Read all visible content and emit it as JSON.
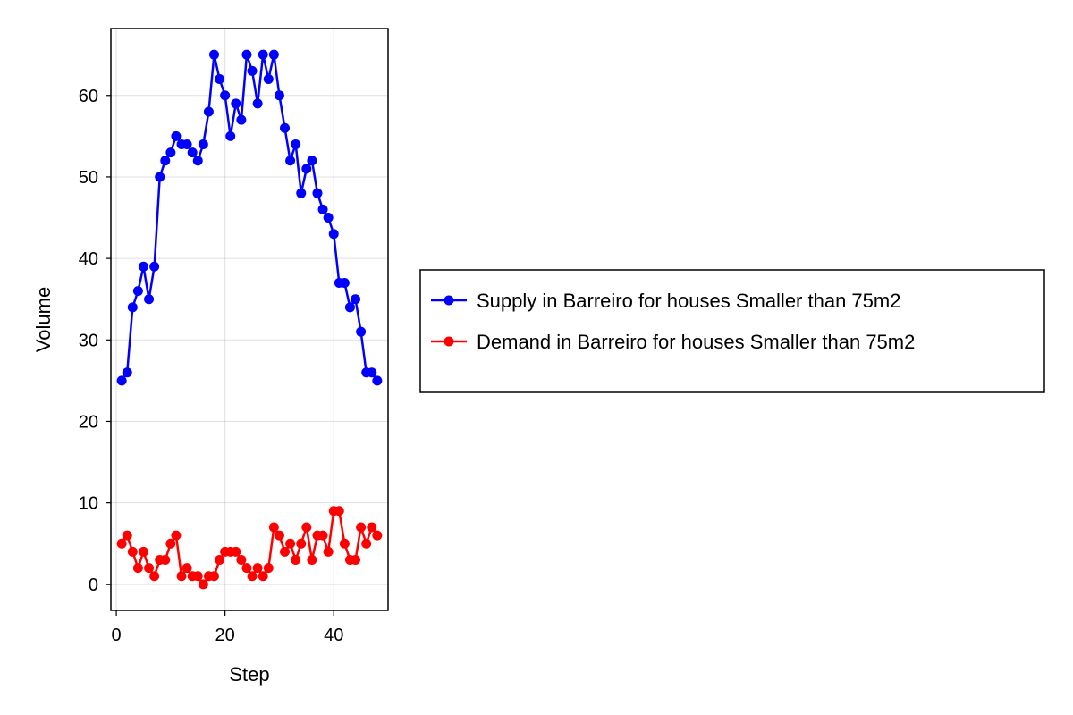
{
  "chart_data": {
    "type": "line",
    "xlabel": "Step",
    "ylabel": "Volume",
    "xlim": [
      -1,
      50
    ],
    "ylim": [
      -3.2,
      68.2
    ],
    "xticks": [
      0,
      20,
      40
    ],
    "yticks": [
      0,
      10,
      20,
      30,
      40,
      50,
      60
    ],
    "grid": true,
    "legend_placement": "right",
    "x": [
      1,
      2,
      3,
      4,
      5,
      6,
      7,
      8,
      9,
      10,
      11,
      12,
      13,
      14,
      15,
      16,
      17,
      18,
      19,
      20,
      21,
      22,
      23,
      24,
      25,
      26,
      27,
      28,
      29,
      30,
      31,
      32,
      33,
      34,
      35,
      36,
      37,
      38,
      39,
      40,
      41,
      42,
      43,
      44,
      45,
      46,
      47,
      48
    ],
    "series": [
      {
        "name": "Supply in Barreiro for houses Smaller than 75m2",
        "color": "#0000ff",
        "values": [
          25,
          26,
          34,
          36,
          39,
          35,
          39,
          50,
          52,
          53,
          55,
          54,
          54,
          53,
          52,
          54,
          58,
          65,
          62,
          60,
          55,
          59,
          57,
          65,
          63,
          59,
          65,
          62,
          65,
          60,
          56,
          52,
          54,
          48,
          51,
          52,
          48,
          46,
          45,
          43,
          37,
          37,
          34,
          35,
          31,
          26,
          26,
          25
        ]
      },
      {
        "name": "Demand in Barreiro for houses Smaller than 75m2",
        "color": "#ff0000",
        "values": [
          5,
          6,
          4,
          2,
          4,
          2,
          1,
          3,
          3,
          5,
          6,
          1,
          2,
          1,
          1,
          0,
          1,
          1,
          3,
          4,
          4,
          4,
          3,
          2,
          1,
          2,
          1,
          2,
          7,
          6,
          4,
          5,
          3,
          5,
          7,
          3,
          6,
          6,
          4,
          9,
          9,
          5,
          3,
          3,
          7,
          5,
          7,
          6
        ]
      }
    ]
  }
}
